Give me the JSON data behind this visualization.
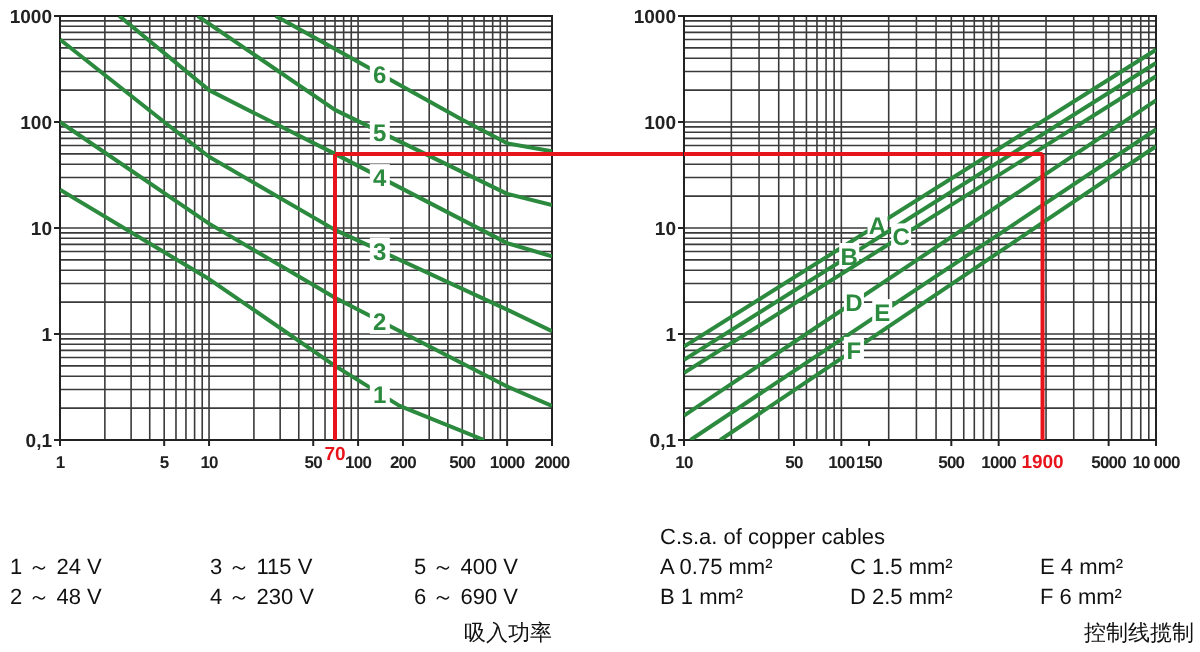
{
  "chart_data": [
    {
      "type": "line",
      "log": "xy",
      "grid": true,
      "xlim": [
        1,
        2000
      ],
      "ylim": [
        0.1,
        1000
      ],
      "xticks": [
        1,
        5,
        10,
        50,
        100,
        200,
        500,
        1000,
        2000
      ],
      "yticks": [
        {
          "value": 0.1,
          "label": "0,1"
        },
        1,
        10,
        100,
        1000
      ],
      "xlabel": "吸入功率",
      "series": [
        {
          "name": "1",
          "color": "#2b8a3e",
          "x": [
            1,
            10,
            70,
            190,
            700
          ],
          "values": [
            23,
            3.3,
            0.5,
            0.21,
            0.1
          ]
        },
        {
          "name": "2",
          "color": "#2b8a3e",
          "x": [
            1,
            10,
            70,
            1000,
            2000
          ],
          "values": [
            100,
            11,
            2.2,
            0.32,
            0.21
          ]
        },
        {
          "name": "3",
          "color": "#2b8a3e",
          "x": [
            1,
            5,
            10,
            70,
            1000,
            2000
          ],
          "values": [
            600,
            100,
            47,
            9.6,
            1.7,
            1.06
          ]
        },
        {
          "name": "4",
          "color": "#2b8a3e",
          "x": [
            2.5,
            10,
            70,
            1000,
            2000
          ],
          "values": [
            1000,
            200,
            50,
            7.2,
            5.4
          ]
        },
        {
          "name": "5",
          "color": "#2b8a3e",
          "x": [
            8.4,
            70,
            1000,
            2000
          ],
          "values": [
            1000,
            130,
            21,
            16.5
          ]
        },
        {
          "name": "6",
          "color": "#2b8a3e",
          "x": [
            28,
            500,
            1000,
            2000
          ],
          "values": [
            1000,
            105,
            63,
            53
          ]
        }
      ],
      "ref_lines": [
        {
          "axis": "x",
          "value": 70,
          "label": "70",
          "color": "#e8141c"
        },
        {
          "axis": "y",
          "value": 50,
          "color": "#e8141c"
        }
      ],
      "annotations": [
        "1 ～ 24 V",
        "2 ～ 48 V",
        "3 ～ 115 V",
        "4 ～ 230 V",
        "5 ～ 400 V",
        "6 ～ 690 V"
      ]
    },
    {
      "type": "line",
      "log": "xy",
      "grid": true,
      "xlim": [
        10,
        10000
      ],
      "ylim": [
        0.1,
        1000
      ],
      "xticks": [
        10,
        50,
        100,
        150,
        500,
        1000,
        5000,
        {
          "value": 10000,
          "label": "10 000"
        }
      ],
      "yticks": [
        {
          "value": 0.1,
          "label": "0,1"
        },
        1,
        10,
        100,
        1000
      ],
      "xlabel": "控制线揽制",
      "legend_title": "C.s.a. of copper cables",
      "series": [
        {
          "name": "A",
          "color": "#2b8a3e",
          "x": [
            10,
            10000
          ],
          "values": [
            0.76,
            480
          ]
        },
        {
          "name": "B",
          "color": "#2b8a3e",
          "x": [
            10,
            10000
          ],
          "values": [
            0.57,
            360
          ]
        },
        {
          "name": "C",
          "color": "#2b8a3e",
          "x": [
            10,
            10000
          ],
          "values": [
            0.43,
            270
          ]
        },
        {
          "name": "D",
          "color": "#2b8a3e",
          "x": [
            10,
            10000
          ],
          "values": [
            0.17,
            160
          ]
        },
        {
          "name": "E",
          "color": "#2b8a3e",
          "x": [
            11,
            10000
          ],
          "values": [
            0.1,
            85
          ]
        },
        {
          "name": "F",
          "color": "#2b8a3e",
          "x": [
            17,
            10000
          ],
          "values": [
            0.1,
            59
          ]
        }
      ],
      "ref_lines": [
        {
          "axis": "x",
          "value": 1900,
          "label": "1900",
          "color": "#e8141c"
        },
        {
          "axis": "y",
          "value": 50,
          "color": "#e8141c"
        }
      ],
      "annotations": [
        "A 0.75 mm²",
        "B 1 mm²",
        "C 1.5 mm²",
        "D 2.5 mm²",
        "E 4 mm²",
        "F 6 mm²"
      ]
    }
  ]
}
